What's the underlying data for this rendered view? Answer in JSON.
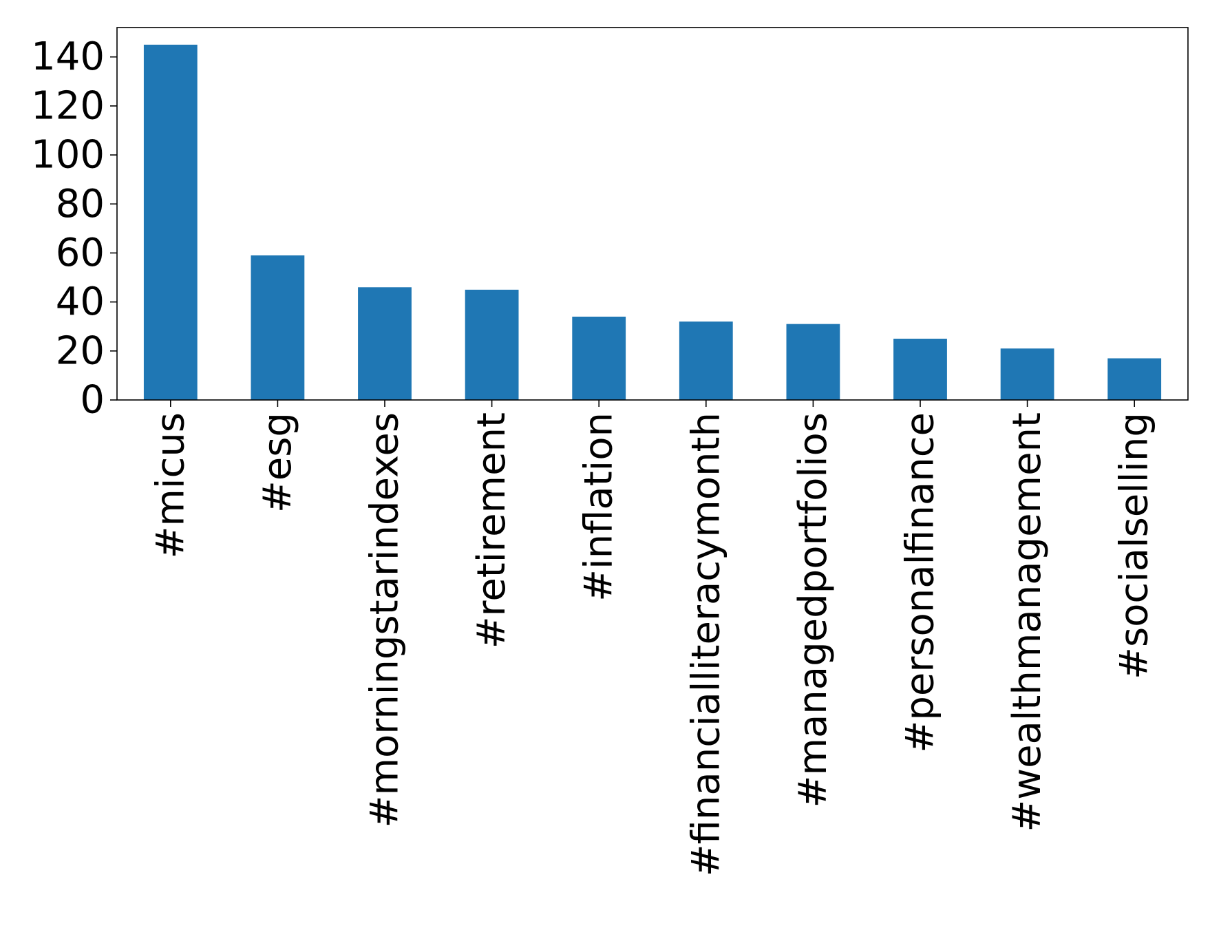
{
  "chart_data": {
    "type": "bar",
    "title": "",
    "xlabel": "",
    "ylabel": "",
    "categories": [
      "#micus",
      "#esg",
      "#morningstarindexes",
      "#retirement",
      "#inflation",
      "#financialliteracymonth",
      "#managedportfolios",
      "#personalfinance",
      "#wealthmanagement",
      "#socialselling"
    ],
    "values": [
      145,
      59,
      46,
      45,
      34,
      32,
      31,
      25,
      21,
      17
    ],
    "ylim": [
      0,
      152
    ],
    "yticks": [
      0,
      20,
      40,
      60,
      80,
      100,
      120,
      140
    ],
    "bar_color": "#1f77b4",
    "grid": false,
    "legend": "none"
  }
}
